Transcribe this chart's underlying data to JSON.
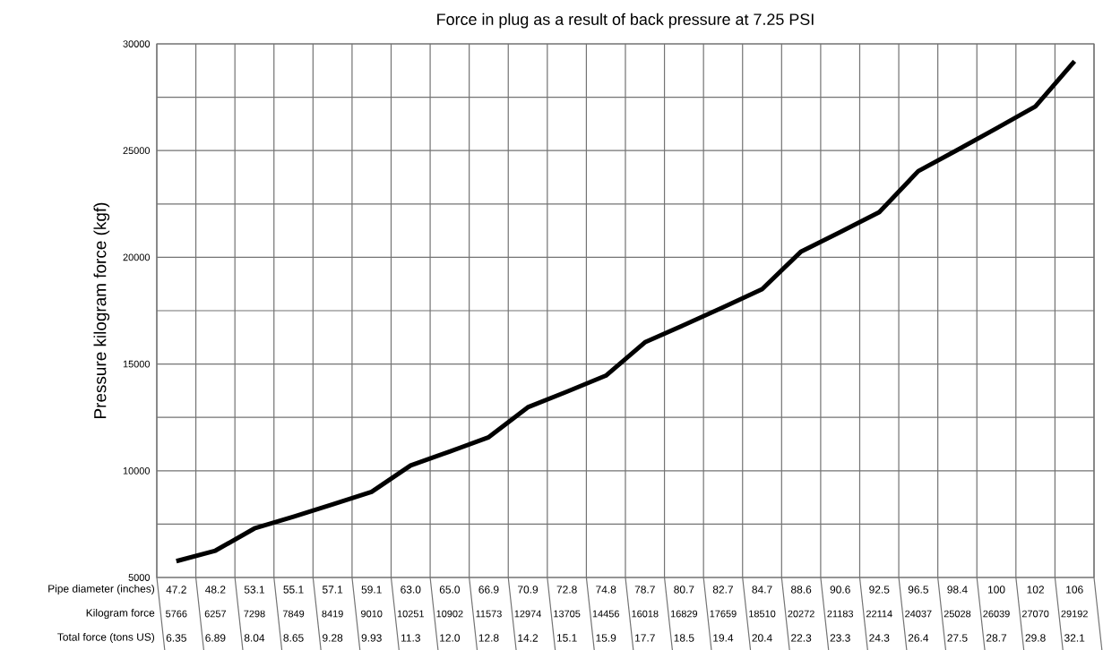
{
  "chart_data": {
    "type": "line",
    "title": "Force in plug as a result of back pressure at 7.25 PSI",
    "xlabel": "Pipe diameter (inches)",
    "ylabel": "Pressure kilogram force (kgf)",
    "categories": [
      "47.2",
      "48.2",
      "53.1",
      "55.1",
      "57.1",
      "59.1",
      "63.0",
      "65.0",
      "66.9",
      "70.9",
      "72.8",
      "74.8",
      "78.7",
      "80.7",
      "82.7",
      "84.7",
      "88.6",
      "90.6",
      "92.5",
      "96.5",
      "98.4",
      "100",
      "102",
      "106"
    ],
    "series": [
      {
        "name": "Kilogram force",
        "color": "#000000",
        "values": [
          5766,
          6257,
          7298,
          7849,
          8419,
          9010,
          10251,
          10902,
          11573,
          12974,
          13705,
          14456,
          16018,
          16829,
          17659,
          18510,
          20272,
          21183,
          22114,
          24037,
          25028,
          26039,
          27070,
          29192
        ]
      }
    ],
    "data_labels": true,
    "ylim": [
      5000,
      30000
    ],
    "yticks": [
      5000,
      {
        "value": 7500,
        "label": null
      },
      10000,
      {
        "value": 12500,
        "label": null
      },
      15000,
      {
        "value": 17500,
        "label": null
      },
      20000,
      {
        "value": 22500,
        "label": null
      },
      25000,
      {
        "value": 27500,
        "label": null
      },
      30000
    ],
    "grid": true,
    "annotations": [
      "Total force (tons US)",
      "6.35",
      "6.89",
      "8.04",
      "8.65",
      "9.28",
      "9.93",
      "11.3",
      "12.0",
      "12.8",
      "14.2",
      "15.1",
      "15.9",
      "17.7",
      "18.5",
      "19.4",
      "20.4",
      "22.3",
      "23.3",
      "24.3",
      "26.4",
      "27.5",
      "28.7",
      "29.8",
      "32.1"
    ]
  }
}
